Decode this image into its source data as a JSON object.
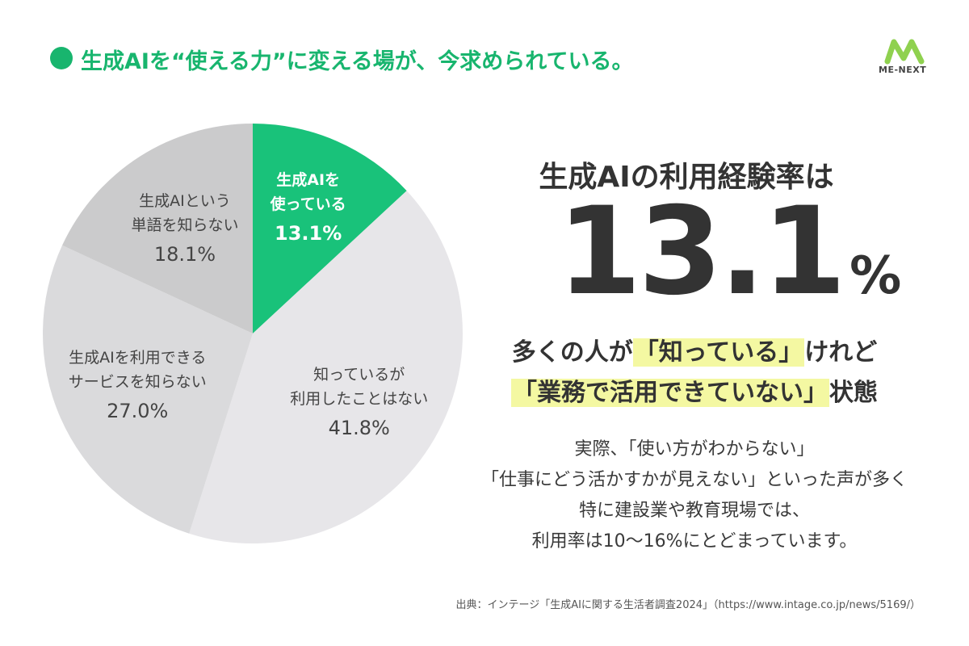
{
  "header": {
    "title": "生成AIを“使える力”に変える場が、今求められている。",
    "logo": "ME-NEXT"
  },
  "chart_data": {
    "type": "pie",
    "categories": [
      "生成AIを\n使っている",
      "知っているが\n利用したことはない",
      "生成AIを利用できる\nサービスを知らない",
      "生成AIという\n単語を知らない"
    ],
    "values": [
      13.1,
      41.8,
      27.0,
      18.1
    ],
    "value_labels": [
      "13.1%",
      "41.8%",
      "27.0%",
      "18.1%"
    ],
    "colors": [
      "#19c27a",
      "#e7e6e9",
      "#dadadc",
      "#cbcbcc"
    ]
  },
  "highlight": {
    "label": "生成AIの利用経験率は",
    "number": "13.1",
    "unit": "%"
  },
  "headline": [
    [
      {
        "text": "多くの人が"
      },
      {
        "text": "「知っている」",
        "highlight": true
      },
      {
        "text": "けれど"
      }
    ],
    [
      {
        "text": "「業務で活用できていない」",
        "highlight": true
      },
      {
        "text": "状態"
      }
    ]
  ],
  "body": [
    "実際、「使い方がわからない」",
    "「仕事にどう活かすかが見えない」といった声が多く",
    "特に建設業や教育現場では、",
    "利用率は10〜16%にとどまっています。"
  ],
  "source": "出典：インテージ「生成AIに関する生活者調査2024」（https://www.intage.co.jp/news/5169/）"
}
